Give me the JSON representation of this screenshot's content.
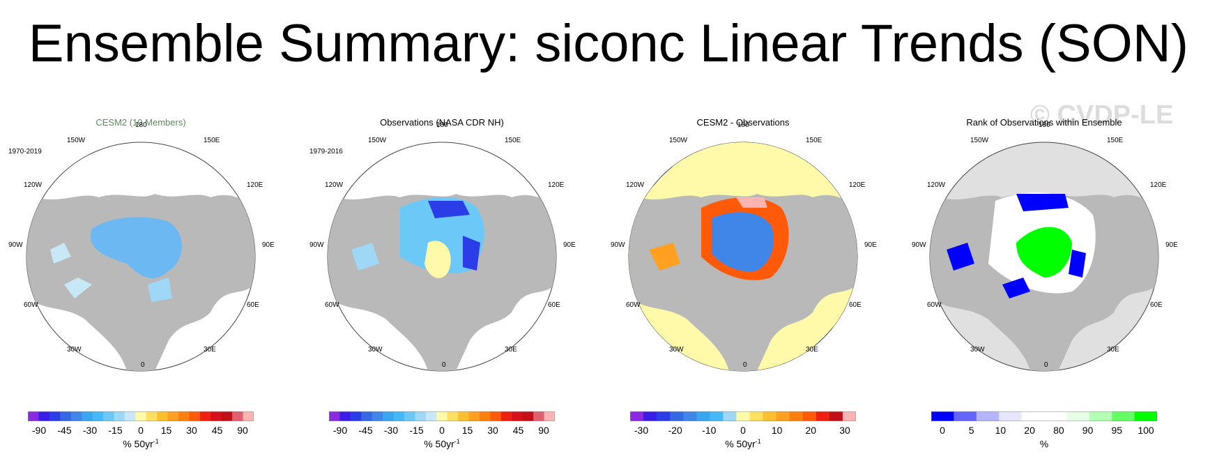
{
  "title": "Ensemble Summary: siconc Linear Trends (SON)",
  "watermark": "© CVDP-LE",
  "longitudes": [
    "180",
    "150E",
    "120E",
    "90E",
    "60E",
    "30E",
    "0",
    "30W",
    "60W",
    "90W",
    "120W",
    "150W"
  ],
  "panels": [
    {
      "title": "CESM2 (10 Members)",
      "title_color": "#5a8a5a",
      "period": "1970-2019",
      "colorbar": {
        "colors": [
          "#8a2be2",
          "#3a1ee8",
          "#2b3de6",
          "#3568e2",
          "#3f86e8",
          "#3aa6f0",
          "#45b9f7",
          "#6cc8f7",
          "#9fd8f6",
          "#c8e8f7",
          "#fffaaa",
          "#ffe060",
          "#ffc030",
          "#ffa020",
          "#ff8010",
          "#ff5a0a",
          "#f02010",
          "#d8101a",
          "#c01018",
          "#e06070",
          "#ffb4b4"
        ],
        "ticks": [
          "-90",
          "-45",
          "-30",
          "-15",
          "0",
          "15",
          "30",
          "45",
          "90"
        ]
      },
      "unit": "% 50yr",
      "unit_sup": "-1"
    },
    {
      "title": "Observations (NASA CDR NH)",
      "title_color": "#000000",
      "period": "1979-2016",
      "colorbar": {
        "colors": [
          "#8a2be2",
          "#3a1ee8",
          "#2b3de6",
          "#3568e2",
          "#3f86e8",
          "#3aa6f0",
          "#45b9f7",
          "#6cc8f7",
          "#9fd8f6",
          "#c8e8f7",
          "#fffaaa",
          "#ffe060",
          "#ffc030",
          "#ffa020",
          "#ff8010",
          "#ff5a0a",
          "#f02010",
          "#d8101a",
          "#c01018",
          "#e06070",
          "#ffb4b4"
        ],
        "ticks": [
          "-90",
          "-45",
          "-30",
          "-15",
          "0",
          "15",
          "30",
          "45",
          "90"
        ]
      },
      "unit": "% 50yr",
      "unit_sup": "-1"
    },
    {
      "title": "CESM2 - Observations",
      "title_color": "#000000",
      "period": "",
      "colorbar": {
        "colors": [
          "#8a2be2",
          "#3a1ee8",
          "#2b3de6",
          "#3568e2",
          "#3f86e8",
          "#3aa6f0",
          "#45b9f7",
          "#9fd8f6",
          "#fffaaa",
          "#ffe060",
          "#ffc030",
          "#ffa020",
          "#ff8010",
          "#ff5a0a",
          "#f02010",
          "#c01018",
          "#ffb4b4"
        ],
        "ticks": [
          "-30",
          "-20",
          "-10",
          "0",
          "10",
          "20",
          "30"
        ]
      },
      "unit": "% 50yr",
      "unit_sup": "-1"
    },
    {
      "title": "Rank of Observations within Ensemble",
      "title_color": "#000000",
      "period": "",
      "colorbar": {
        "colors": [
          "#0000ff",
          "#6464ff",
          "#b4b4ff",
          "#e6e6ff",
          "#ffffff",
          "#ffffff",
          "#e6ffe6",
          "#b4ffb4",
          "#64ff64",
          "#00ff00"
        ],
        "ticks": [
          "0",
          "5",
          "10",
          "20",
          "80",
          "90",
          "95",
          "100"
        ]
      },
      "unit": "%",
      "unit_sup": ""
    }
  ]
}
